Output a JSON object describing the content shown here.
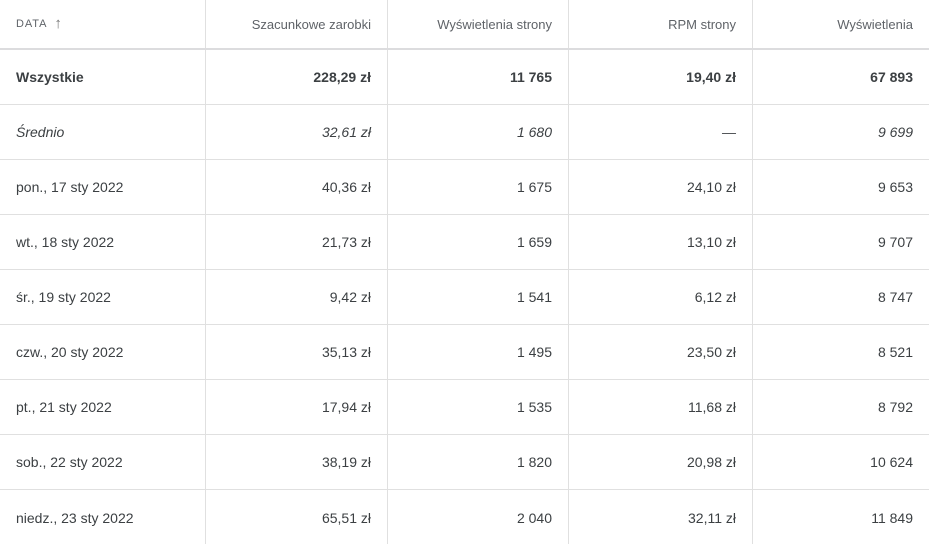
{
  "colors": {
    "background": "#ffffff",
    "border": "#e0e0e0",
    "header_border": "#dcdcde",
    "header_text": "#5f6368",
    "body_text": "#3c4043"
  },
  "table": {
    "sort_icon": "↑",
    "columns": [
      {
        "label": "Data",
        "align": "left",
        "sorted": "ascending"
      },
      {
        "label": "Szacunkowe zarobki",
        "align": "right"
      },
      {
        "label": "Wyświetlenia strony",
        "align": "right"
      },
      {
        "label": "RPM strony",
        "align": "right"
      },
      {
        "label": "Wyświetlenia",
        "align": "right"
      }
    ],
    "rows": [
      {
        "kind": "totals",
        "cells": [
          "Wszystkie",
          "228,29 zł",
          "11 765",
          "19,40 zł",
          "67 893"
        ]
      },
      {
        "kind": "average",
        "cells": [
          "Średnio",
          "32,61 zł",
          "1 680",
          "—",
          "9 699"
        ]
      },
      {
        "kind": "date",
        "cells": [
          "pon., 17 sty 2022",
          "40,36 zł",
          "1 675",
          "24,10 zł",
          "9 653"
        ]
      },
      {
        "kind": "date",
        "cells": [
          "wt., 18 sty 2022",
          "21,73 zł",
          "1 659",
          "13,10 zł",
          "9 707"
        ]
      },
      {
        "kind": "date",
        "cells": [
          "śr., 19 sty 2022",
          "9,42 zł",
          "1 541",
          "6,12 zł",
          "8 747"
        ]
      },
      {
        "kind": "date",
        "cells": [
          "czw., 20 sty 2022",
          "35,13 zł",
          "1 495",
          "23,50 zł",
          "8 521"
        ]
      },
      {
        "kind": "date",
        "cells": [
          "pt., 21 sty 2022",
          "17,94 zł",
          "1 535",
          "11,68 zł",
          "8 792"
        ]
      },
      {
        "kind": "date",
        "cells": [
          "sob., 22 sty 2022",
          "38,19 zł",
          "1 820",
          "20,98 zł",
          "10 624"
        ]
      },
      {
        "kind": "date",
        "cells": [
          "niedz., 23 sty 2022",
          "65,51 zł",
          "2 040",
          "32,11 zł",
          "11 849"
        ]
      }
    ]
  }
}
